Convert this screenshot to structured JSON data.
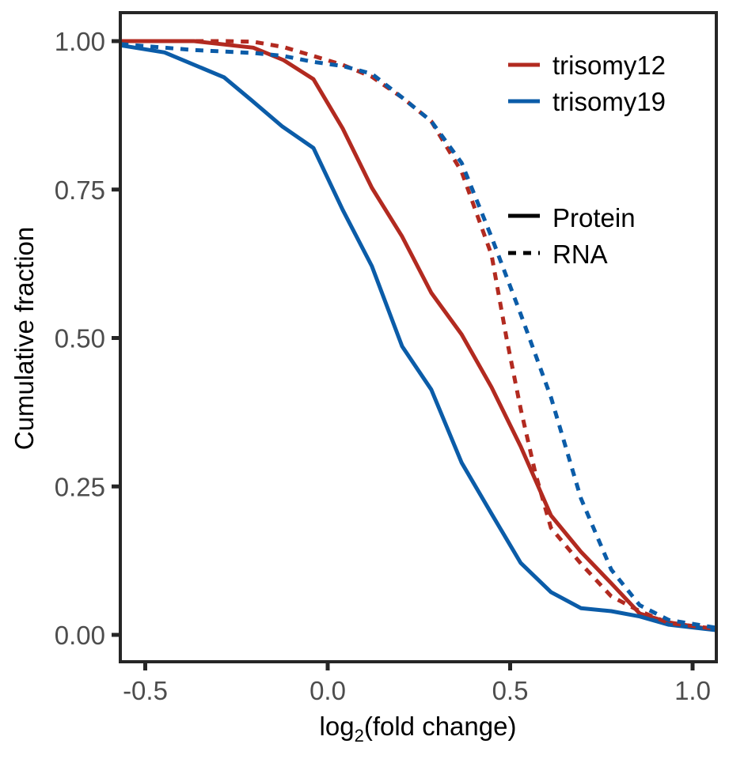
{
  "chart_data": {
    "type": "line",
    "title": "",
    "xlabel": "log2(fold change)",
    "xlabel_base": "log",
    "xlabel_sub": "2",
    "xlabel_rest": "(fold change)",
    "ylabel": "Cumulative fraction",
    "xlim": [
      -0.57,
      1.07
    ],
    "ylim": [
      -0.045,
      1.05
    ],
    "xticks": [
      -0.5,
      0.0,
      0.5,
      1.0
    ],
    "xtick_labels": [
      "-0.5",
      "0.0",
      "0.5",
      "1.0"
    ],
    "yticks": [
      0.0,
      0.25,
      0.5,
      0.75,
      1.0
    ],
    "ytick_labels": [
      "0.00",
      "0.25",
      "0.50",
      "0.75",
      "1.00"
    ],
    "grid": false,
    "legend_placement": "top-right",
    "legend": {
      "color": [
        {
          "label": "trisomy12",
          "color": "#B22A20"
        },
        {
          "label": "trisomy19",
          "color": "#0B5CA8"
        }
      ],
      "linetype": [
        {
          "label": "Protein",
          "dash": "solid"
        },
        {
          "label": "RNA",
          "dash": "dashed"
        }
      ]
    },
    "series": [
      {
        "name": "trisomy12 Protein",
        "color": "#B22A20",
        "dash": "solid",
        "x": [
          -0.568,
          -0.366,
          -0.204,
          -0.121,
          -0.039,
          0.041,
          0.121,
          0.204,
          0.284,
          0.367,
          0.449,
          0.529,
          0.612,
          0.694,
          0.777,
          0.855,
          0.935,
          1.065
        ],
        "y": [
          1.0,
          1.0,
          0.989,
          0.968,
          0.936,
          0.853,
          0.753,
          0.671,
          0.576,
          0.506,
          0.417,
          0.317,
          0.201,
          0.14,
          0.087,
          0.036,
          0.021,
          0.008
        ]
      },
      {
        "name": "trisomy19 Protein",
        "color": "#0B5CA8",
        "dash": "solid",
        "x": [
          -0.568,
          -0.447,
          -0.284,
          -0.208,
          -0.124,
          -0.039,
          0.041,
          0.121,
          0.204,
          0.284,
          0.367,
          0.449,
          0.529,
          0.612,
          0.694,
          0.777,
          0.855,
          0.935,
          1.065
        ],
        "y": [
          0.993,
          0.981,
          0.939,
          0.9,
          0.856,
          0.82,
          0.716,
          0.621,
          0.486,
          0.413,
          0.29,
          0.204,
          0.121,
          0.072,
          0.045,
          0.04,
          0.031,
          0.017,
          0.008
        ]
      },
      {
        "name": "trisomy12 RNA",
        "color": "#B22A20",
        "dash": "dashed",
        "x": [
          -0.568,
          -0.284,
          -0.204,
          -0.121,
          -0.039,
          0.041,
          0.121,
          0.204,
          0.284,
          0.367,
          0.449,
          0.49,
          0.529,
          0.57,
          0.612,
          0.694,
          0.777,
          0.855,
          0.935,
          1.065
        ],
        "y": [
          1.0,
          1.0,
          0.999,
          0.99,
          0.975,
          0.96,
          0.94,
          0.905,
          0.865,
          0.78,
          0.64,
          0.5,
          0.38,
          0.27,
          0.18,
          0.12,
          0.065,
          0.04,
          0.02,
          0.01
        ]
      },
      {
        "name": "trisomy19 RNA",
        "color": "#0B5CA8",
        "dash": "dashed",
        "x": [
          -0.568,
          -0.366,
          -0.204,
          -0.121,
          -0.039,
          0.041,
          0.121,
          0.204,
          0.284,
          0.367,
          0.449,
          0.529,
          0.612,
          0.694,
          0.777,
          0.855,
          0.935,
          1.065
        ],
        "y": [
          0.995,
          0.985,
          0.98,
          0.975,
          0.965,
          0.958,
          0.945,
          0.905,
          0.865,
          0.795,
          0.67,
          0.54,
          0.4,
          0.23,
          0.11,
          0.05,
          0.025,
          0.012
        ]
      }
    ]
  }
}
